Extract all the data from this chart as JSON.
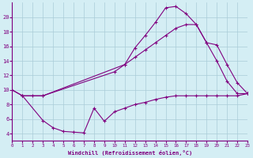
{
  "xlabel": "Windchill (Refroidissement éolien,°C)",
  "bg_color": "#d4eef4",
  "line_color": "#800080",
  "grid_color": "#aaccd8",
  "xlim": [
    0,
    23
  ],
  "ylim": [
    3,
    22
  ],
  "xticks": [
    0,
    1,
    2,
    3,
    4,
    5,
    6,
    7,
    8,
    9,
    10,
    11,
    12,
    13,
    14,
    15,
    16,
    17,
    18,
    19,
    20,
    21,
    22,
    23
  ],
  "yticks": [
    4,
    6,
    8,
    10,
    12,
    14,
    16,
    18,
    20
  ],
  "line1_x": [
    0,
    1,
    2,
    3,
    10,
    11,
    12,
    13,
    14,
    15,
    16,
    17,
    18,
    19,
    20,
    21,
    22,
    23
  ],
  "line1_y": [
    10,
    9.2,
    9.2,
    9.2,
    12.5,
    13.5,
    14.5,
    15.5,
    16.5,
    17.5,
    18.5,
    19.0,
    19.0,
    16.5,
    16.2,
    13.5,
    11.0,
    9.5
  ],
  "line2_x": [
    0,
    1,
    3,
    11,
    12,
    13,
    14,
    15,
    16,
    17,
    18,
    19,
    20,
    21,
    22,
    23
  ],
  "line2_y": [
    10,
    9.2,
    9.2,
    13.5,
    15.8,
    17.5,
    19.3,
    21.3,
    21.5,
    20.5,
    19.0,
    16.5,
    14.0,
    11.2,
    9.5,
    9.5
  ],
  "line3_x": [
    1,
    3,
    4,
    5,
    6,
    7,
    8,
    9,
    10,
    11,
    12,
    13,
    14,
    15,
    16,
    17,
    18,
    19,
    20,
    21,
    22,
    23
  ],
  "line3_y": [
    9.2,
    5.8,
    4.8,
    4.3,
    4.2,
    4.1,
    7.5,
    5.7,
    7.0,
    7.5,
    8.0,
    8.3,
    8.7,
    9.0,
    9.2,
    9.2,
    9.2,
    9.2,
    9.2,
    9.2,
    9.2,
    9.5
  ]
}
